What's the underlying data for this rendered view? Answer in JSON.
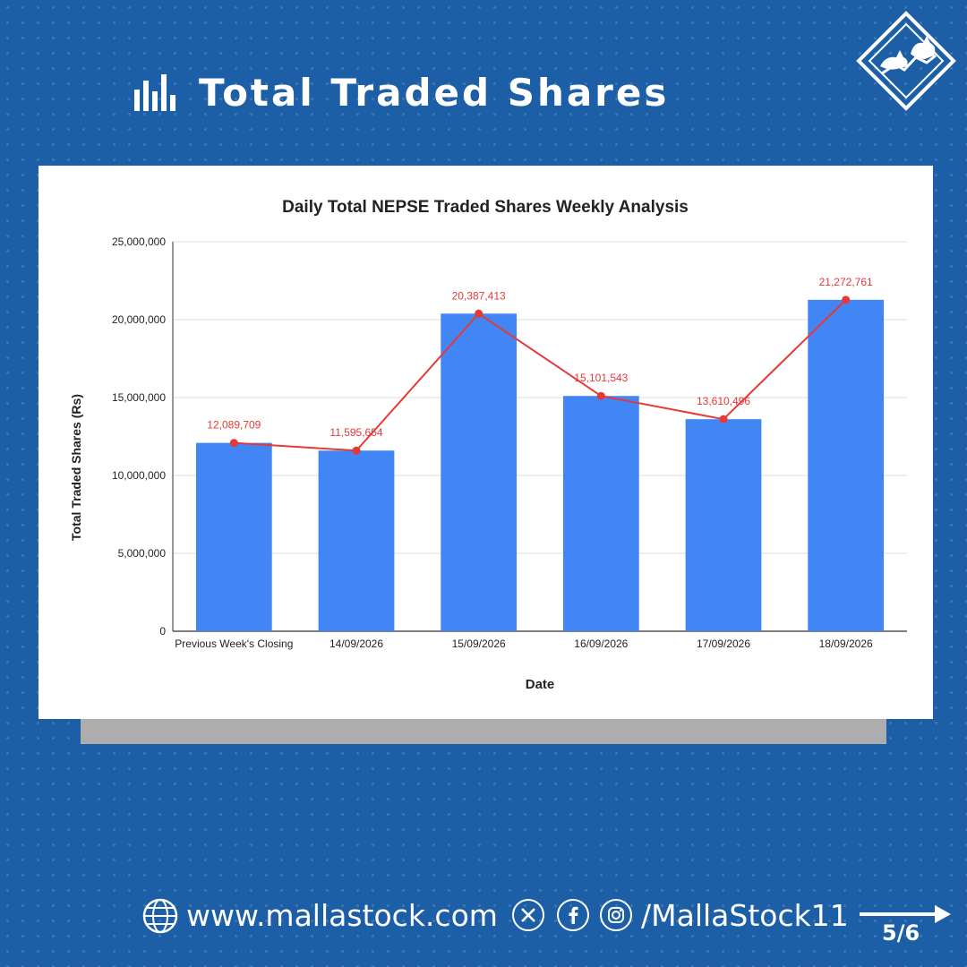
{
  "header": {
    "title": "Total Traded Shares"
  },
  "icons": {
    "header": "bar-chart-icon",
    "logo": "bull-bear-logo-icon",
    "globe": "globe-icon",
    "x": "x-icon",
    "facebook": "facebook-icon",
    "instagram": "instagram-icon",
    "next": "arrow-right-icon"
  },
  "colors": {
    "background": "#1d5fa7",
    "bar": "#4285f4",
    "line": "#e53935",
    "label": "#e53935"
  },
  "chart_data": {
    "type": "bar",
    "title": "Daily Total NEPSE Traded Shares Weekly Analysis",
    "xlabel": "Date",
    "ylabel": "Total Traded Shares (Rs)",
    "ylim": [
      0,
      25000000
    ],
    "yticks": [
      0,
      5000000,
      10000000,
      15000000,
      20000000,
      25000000
    ],
    "ytick_labels": [
      "0",
      "5,000,000",
      "10,000,000",
      "15,000,000",
      "20,000,000",
      "25,000,000"
    ],
    "grid": true,
    "categories": [
      "Previous Week's Closing",
      "14/09/2026",
      "15/09/2026",
      "16/09/2026",
      "17/09/2026",
      "18/09/2026"
    ],
    "values": [
      12089709,
      11595654,
      20387413,
      15101543,
      13610496,
      21272761
    ],
    "data_labels": [
      "12,089,709",
      "11,595,654",
      "20,387,413",
      "15,101,543",
      "13,610,496",
      "21,272,761"
    ],
    "overlay_line": true
  },
  "footer": {
    "website": "www.mallastock.com",
    "handle": "/MallaStock11",
    "page": "5/6"
  }
}
